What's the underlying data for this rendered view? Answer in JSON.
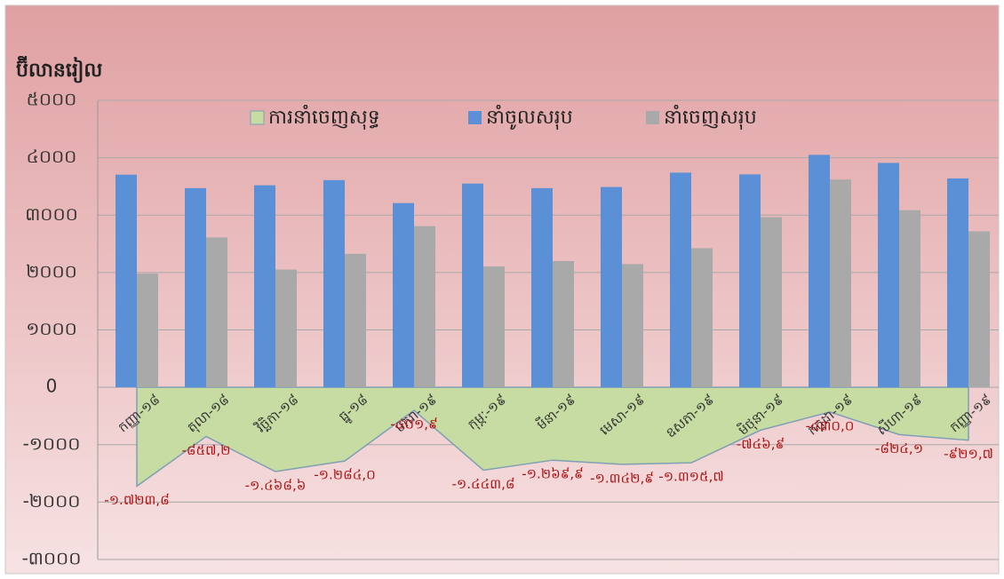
{
  "chart_data": {
    "type": "bar",
    "ylabel": "ប៊ីលានរៀល",
    "categories": [
      "កញ្ញា-១៨",
      "តុលា-១៨",
      "វិច្ឆិកា-១៨",
      "ធ្នូ-១៨",
      "មករា-១៩",
      "កុម្ភៈ-១៩",
      "មីនា-១៩",
      "មេសា-១៩",
      "ឧសភា-១៩",
      "មិថុនា-១៩",
      "កក្កដា-១៩",
      "សីហា-១៩",
      "កញ្ញា-១៩"
    ],
    "series": [
      {
        "name": "ការនាំចេញសុទ្ធ",
        "type": "area",
        "color": "#c6dca2",
        "values": [
          -1723.8,
          -857.2,
          -1468.6,
          -1284.0,
          -401.9,
          -1443.8,
          -1269.9,
          -1342.9,
          -1315.7,
          -746.9,
          -430.0,
          -824.1,
          -921.7
        ],
        "value_labels": [
          "-១.៧២៣,៨",
          "-៨៥៧,២",
          "-១.៤៦៨,៦",
          "-១.២៨៤,០",
          "-៤០១,៩",
          "-១.៤៤៣,៨",
          "-១.២៦៩,៩",
          "-១.៣៤២,៩",
          "-១.៣១៥,៧",
          "-៧៤៦,៩",
          "-៤៣០,០",
          "-៨២៤,១",
          "-៩២១,៧"
        ]
      },
      {
        "name": "នាំចូលសរុប",
        "type": "bar",
        "color": "#5b8fd6",
        "values": [
          3705,
          3470,
          3520,
          3610,
          3210,
          3550,
          3470,
          3490,
          3740,
          3710,
          4050,
          3910,
          3640
        ]
      },
      {
        "name": "នាំចេញសរុប",
        "type": "bar",
        "color": "#a9a9a9",
        "values": [
          1982,
          2613,
          2052,
          2326,
          2808,
          2106,
          2200,
          2147,
          2424,
          2963,
          3620,
          3086,
          2718
        ]
      }
    ],
    "ylim": [
      -3000,
      5000
    ],
    "yticks": [
      {
        "value": -3000,
        "label": "-៣០០០"
      },
      {
        "value": -2000,
        "label": "-២០០០"
      },
      {
        "value": -1000,
        "label": "-១០០០"
      },
      0,
      {
        "value": 1000,
        "label": "១០០០"
      },
      {
        "value": 2000,
        "label": "២០០០"
      },
      {
        "value": 3000,
        "label": "៣០០០"
      },
      {
        "value": 4000,
        "label": "៤០០០"
      },
      {
        "value": 5000,
        "label": "៥០០០"
      }
    ],
    "grid": true
  }
}
